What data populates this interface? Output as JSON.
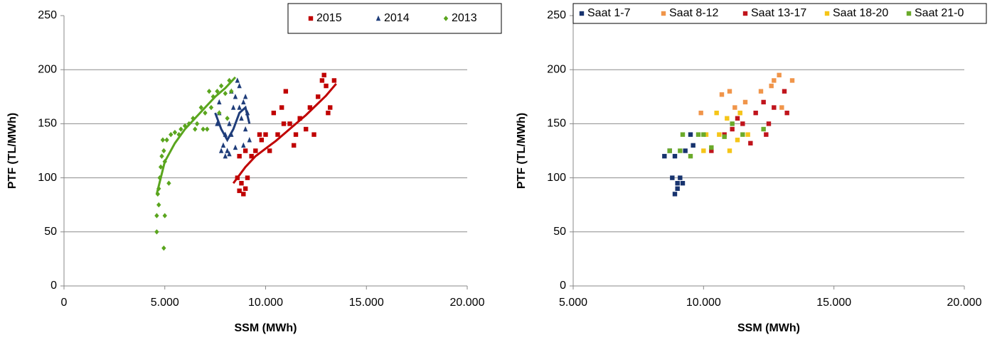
{
  "chart_data": [
    {
      "type": "scatter",
      "xlabel": "SSM (MWh)",
      "ylabel": "PTF (TL/MWh)",
      "xlim": [
        0,
        20000
      ],
      "ylim": [
        0,
        250
      ],
      "xticks": [
        0,
        {
          "value": 5000,
          "label": "5.000"
        },
        {
          "value": 10000,
          "label": "10.000"
        },
        {
          "value": 15000,
          "label": "15.000"
        },
        {
          "value": 20000,
          "label": "20.000"
        }
      ],
      "yticks": [
        0,
        50,
        100,
        150,
        200,
        250
      ],
      "grid": true,
      "legend": "top-right",
      "series": [
        {
          "name": "2015",
          "color": "#c00000",
          "marker": "square",
          "x": [
            8600,
            8700,
            8800,
            8900,
            9000,
            9100,
            8700,
            9000,
            9300,
            9500,
            9700,
            10000,
            10200,
            10400,
            10600,
            10800,
            11000,
            11200,
            11500,
            11700,
            12000,
            12200,
            12400,
            12600,
            12800,
            13000,
            13200,
            13400,
            12900,
            11400,
            10900,
            9800,
            13100
          ],
          "y": [
            100,
            88,
            95,
            85,
            90,
            100,
            120,
            125,
            120,
            125,
            140,
            140,
            125,
            160,
            140,
            165,
            180,
            150,
            140,
            155,
            145,
            165,
            140,
            175,
            190,
            185,
            165,
            190,
            195,
            130,
            150,
            135,
            160
          ],
          "trend": {
            "x": [
              8400,
              9000,
              9500,
              10000,
              10500,
              11000,
              11500,
              12000,
              12500,
              13000,
              13500
            ],
            "y": [
              95,
              110,
              120,
              127,
              134,
              142,
              150,
              158,
              167,
              176,
              187
            ]
          }
        },
        {
          "name": "2014",
          "color": "#1f3d7a",
          "marker": "triangle",
          "x": [
            7600,
            7700,
            7800,
            7900,
            8000,
            8100,
            8200,
            8300,
            8400,
            8500,
            8600,
            8700,
            8800,
            8900,
            9000,
            9100,
            9200,
            8000,
            8300,
            8500,
            8700,
            8900,
            7700,
            9000,
            8200
          ],
          "y": [
            150,
            160,
            125,
            130,
            120,
            125,
            150,
            140,
            165,
            175,
            190,
            165,
            155,
            170,
            145,
            160,
            135,
            140,
            180,
            128,
            185,
            130,
            170,
            175,
            122
          ],
          "trend": {
            "x": [
              7500,
              7800,
              8100,
              8400,
              8700,
              9000,
              9200
            ],
            "y": [
              160,
              145,
              135,
              145,
              160,
              165,
              150
            ]
          }
        },
        {
          "name": "2013",
          "color": "#5aa51e",
          "marker": "diamond",
          "x": [
            4600,
            4600,
            4650,
            4700,
            4750,
            4800,
            4850,
            4900,
            4950,
            5000,
            4950,
            5100,
            5200,
            5300,
            5500,
            5700,
            6000,
            6200,
            6400,
            6600,
            6800,
            7000,
            7200,
            7400,
            7600,
            7800,
            8000,
            8200,
            7100,
            6900,
            7700,
            8300,
            7300,
            6500,
            5800,
            4700,
            5000,
            8100
          ],
          "y": [
            50,
            65,
            85,
            90,
            100,
            110,
            120,
            135,
            35,
            65,
            125,
            135,
            95,
            140,
            142,
            140,
            148,
            150,
            155,
            150,
            165,
            160,
            180,
            175,
            180,
            185,
            178,
            190,
            145,
            145,
            160,
            180,
            165,
            145,
            145,
            75,
            115,
            155
          ],
          "trend": {
            "x": [
              4600,
              5000,
              5500,
              6000,
              6500,
              7000,
              7500,
              8000,
              8500
            ],
            "y": [
              85,
              115,
              132,
              145,
              155,
              165,
              175,
              183,
              193
            ]
          }
        }
      ]
    },
    {
      "type": "scatter",
      "xlabel": "SSM (MWh)",
      "ylabel": "PTF (TL/MWh)",
      "xlim": [
        5000,
        20000
      ],
      "ylim": [
        0,
        250
      ],
      "xticks": [
        {
          "value": 5000,
          "label": "5.000"
        },
        {
          "value": 10000,
          "label": "10.000"
        },
        {
          "value": 15000,
          "label": "15.000"
        },
        {
          "value": 20000,
          "label": "20.000"
        }
      ],
      "yticks": [
        0,
        50,
        100,
        150,
        200,
        250
      ],
      "grid": true,
      "legend": "top",
      "series": [
        {
          "name": "Saat 1-7",
          "color": "#17336e",
          "marker": "square",
          "x": [
            8500,
            8700,
            8800,
            8900,
            9000,
            9100,
            9200,
            9300,
            9500,
            9600,
            8900,
            9000
          ],
          "y": [
            120,
            125,
            100,
            85,
            90,
            100,
            95,
            125,
            140,
            130,
            120,
            95
          ]
        },
        {
          "name": "Saat 8-12",
          "color": "#f0954a",
          "marker": "square",
          "x": [
            9900,
            10700,
            11000,
            11200,
            11600,
            12200,
            12700,
            12900,
            13000,
            13400,
            12600,
            11400
          ],
          "y": [
            160,
            177,
            180,
            165,
            170,
            180,
            190,
            195,
            165,
            190,
            185,
            160
          ]
        },
        {
          "name": "Saat 13-17",
          "color": "#c0141c",
          "marker": "square",
          "x": [
            10300,
            10800,
            11100,
            11300,
            11500,
            11800,
            12000,
            12300,
            12500,
            12700,
            13100,
            13200,
            12400
          ],
          "y": [
            125,
            140,
            145,
            155,
            150,
            132,
            160,
            170,
            150,
            165,
            180,
            160,
            140
          ]
        },
        {
          "name": "Saat 18-20",
          "color": "#f5c518",
          "marker": "square",
          "x": [
            10000,
            10500,
            10600,
            10900,
            11000,
            11300,
            11400,
            11700,
            10100
          ],
          "y": [
            125,
            160,
            140,
            155,
            125,
            135,
            160,
            140,
            140
          ]
        },
        {
          "name": "Saat 21-0",
          "color": "#6aaa2a",
          "marker": "square",
          "x": [
            8700,
            9100,
            9200,
            9500,
            9800,
            10000,
            10300,
            10800,
            11100,
            11500,
            12300
          ],
          "y": [
            125,
            125,
            140,
            120,
            140,
            140,
            128,
            138,
            150,
            140,
            145
          ]
        }
      ]
    }
  ]
}
